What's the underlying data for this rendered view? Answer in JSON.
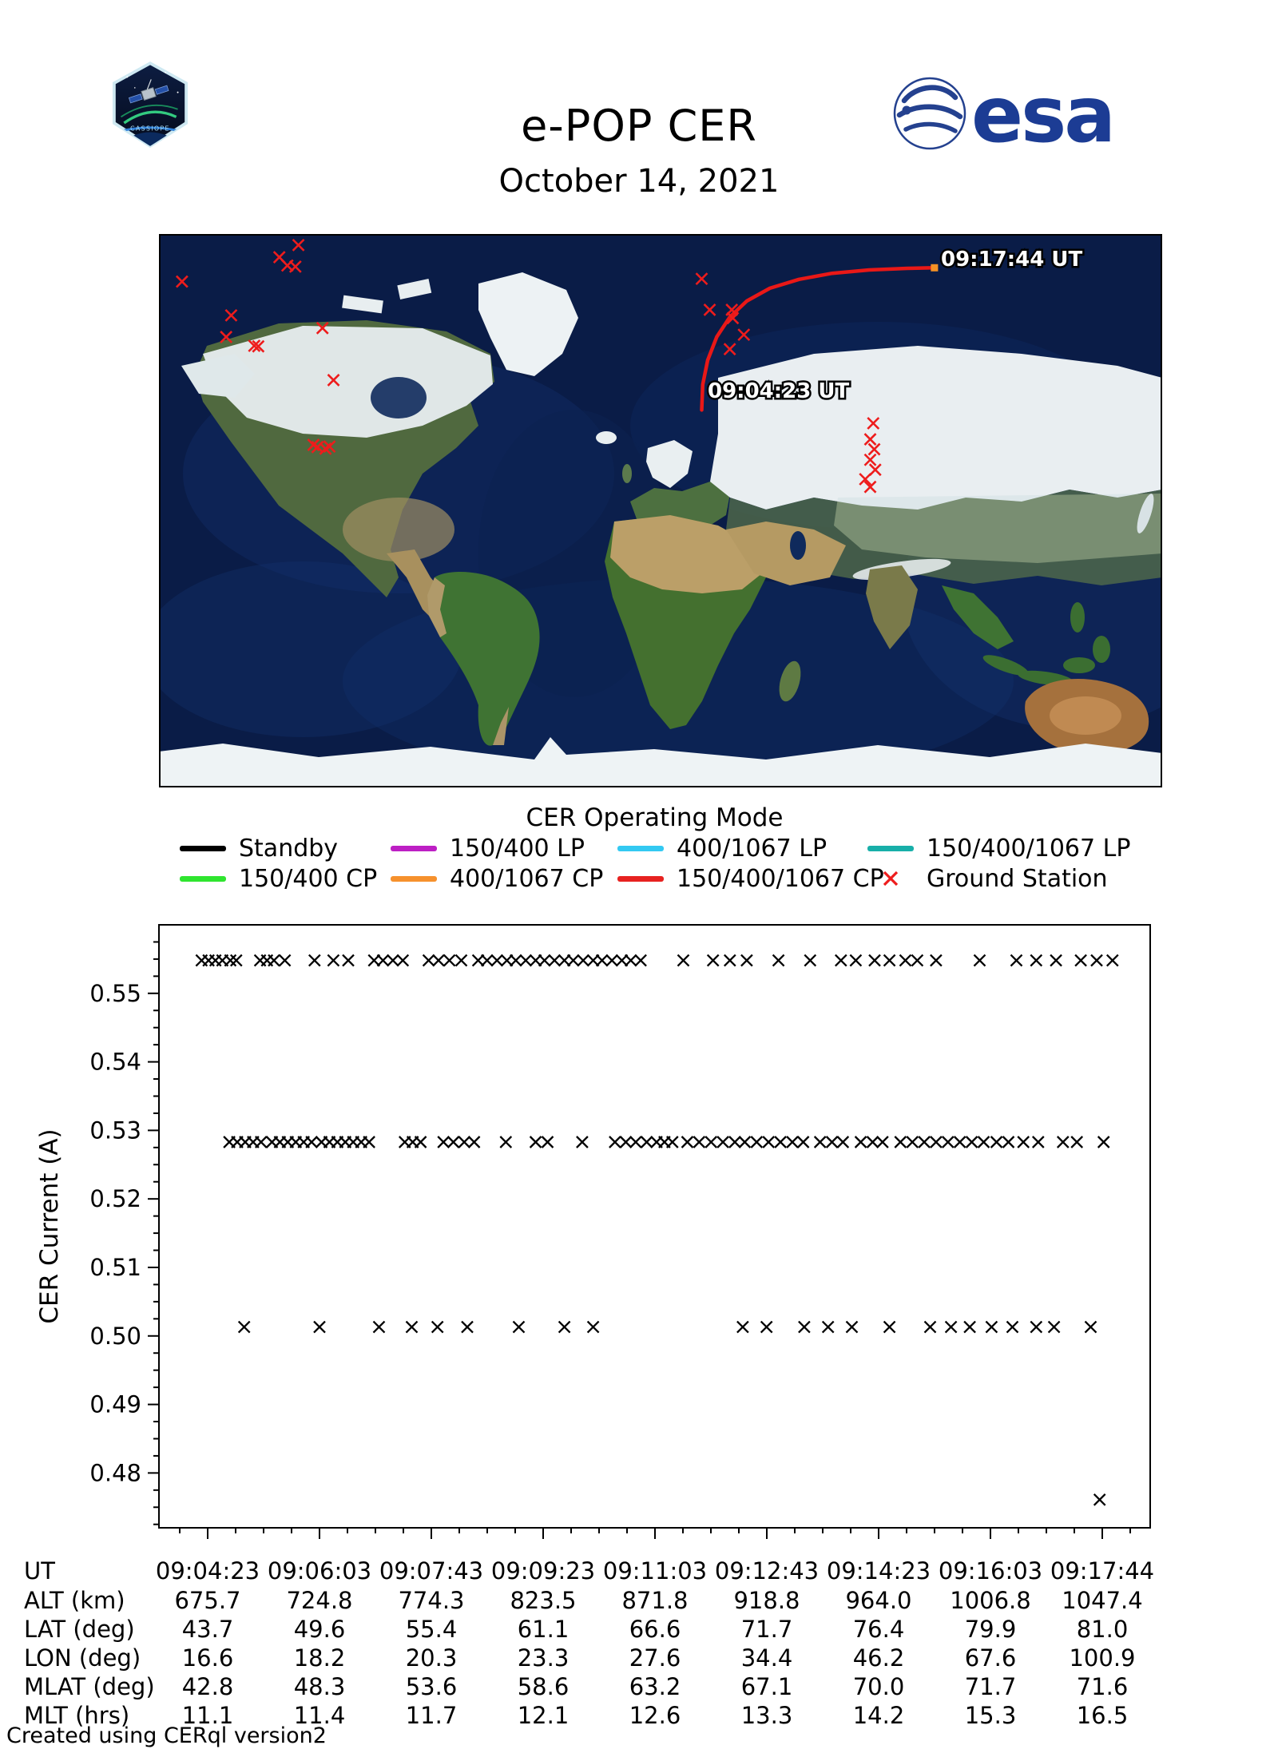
{
  "header": {
    "title": "e-POP CER",
    "date": "October 14, 2021",
    "esa_text": "esa",
    "patch_text": "CASSIOPE"
  },
  "map": {
    "start_label": "09:04:23 UT",
    "end_label": "09:17:44 UT",
    "ground_stations": [
      [
        0.139,
        0.02
      ],
      [
        0.12,
        0.042
      ],
      [
        0.128,
        0.057
      ],
      [
        0.136,
        0.059
      ],
      [
        0.023,
        0.086
      ],
      [
        0.072,
        0.147
      ],
      [
        0.067,
        0.186
      ],
      [
        0.095,
        0.202
      ],
      [
        0.099,
        0.203
      ],
      [
        0.163,
        0.17
      ],
      [
        0.174,
        0.264
      ],
      [
        0.154,
        0.381
      ],
      [
        0.158,
        0.385
      ],
      [
        0.166,
        0.388
      ],
      [
        0.17,
        0.384
      ],
      [
        0.541,
        0.081
      ],
      [
        0.549,
        0.137
      ],
      [
        0.571,
        0.137
      ],
      [
        0.572,
        0.152
      ],
      [
        0.583,
        0.182
      ],
      [
        0.569,
        0.208
      ],
      [
        0.712,
        0.342
      ],
      [
        0.709,
        0.371
      ],
      [
        0.713,
        0.389
      ],
      [
        0.709,
        0.408
      ],
      [
        0.714,
        0.426
      ],
      [
        0.704,
        0.443
      ],
      [
        0.709,
        0.457
      ]
    ],
    "trajectory": [
      [
        0.541,
        0.318
      ],
      [
        0.542,
        0.272
      ],
      [
        0.547,
        0.228
      ],
      [
        0.556,
        0.186
      ],
      [
        0.569,
        0.15
      ],
      [
        0.586,
        0.121
      ],
      [
        0.609,
        0.098
      ],
      [
        0.638,
        0.082
      ],
      [
        0.671,
        0.071
      ],
      [
        0.708,
        0.065
      ],
      [
        0.746,
        0.062
      ],
      [
        0.773,
        0.061
      ]
    ]
  },
  "legend": {
    "title": "CER Operating Mode",
    "items": [
      {
        "label": "Standby",
        "color": "#000000",
        "marker": "line"
      },
      {
        "label": "150/400 LP",
        "color": "#bd1fc4",
        "marker": "line"
      },
      {
        "label": "400/1067 LP",
        "color": "#33c9f2",
        "marker": "line"
      },
      {
        "label": "150/400/1067 LP",
        "color": "#18afa9",
        "marker": "line"
      },
      {
        "label": "150/400 CP",
        "color": "#2fe52f",
        "marker": "line"
      },
      {
        "label": "400/1067 CP",
        "color": "#f6912d",
        "marker": "line"
      },
      {
        "label": "150/400/1067 CP",
        "color": "#e72220",
        "marker": "line"
      },
      {
        "label": "Ground Station",
        "color": "#ee1c1c",
        "marker": "x"
      }
    ]
  },
  "colors": {
    "trajectory": "#e91817",
    "trajectory_endpoint": "#f59226",
    "ground_station": "#ee1c1c",
    "esa_blue": "#1c3c94",
    "marker_black": "#000000"
  },
  "chart_data": {
    "type": "scatter",
    "marker": "x",
    "ylabel": "CER Current (A)",
    "ylim": [
      0.472,
      0.56
    ],
    "yticks": [
      0.48,
      0.49,
      0.5,
      0.51,
      0.52,
      0.53,
      0.54,
      0.55
    ],
    "xticks": [
      "09:04:23",
      "09:06:03",
      "09:07:43",
      "09:09:23",
      "09:11:03",
      "09:12:43",
      "09:14:23",
      "09:16:03",
      "09:17:44"
    ],
    "grid": false,
    "series": [
      {
        "name": "current-band-high",
        "value": 0.5548,
        "t_frac": [
          0.043,
          0.05,
          0.057,
          0.064,
          0.072,
          0.078,
          0.102,
          0.109,
          0.116,
          0.127,
          0.157,
          0.176,
          0.191,
          0.217,
          0.226,
          0.236,
          0.246,
          0.272,
          0.282,
          0.293,
          0.305,
          0.322,
          0.331,
          0.341,
          0.351,
          0.36,
          0.37,
          0.38,
          0.389,
          0.399,
          0.409,
          0.418,
          0.428,
          0.438,
          0.447,
          0.457,
          0.467,
          0.476,
          0.486,
          0.529,
          0.559,
          0.576,
          0.593,
          0.625,
          0.657,
          0.688,
          0.703,
          0.722,
          0.737,
          0.753,
          0.765,
          0.784,
          0.828,
          0.865,
          0.885,
          0.905,
          0.93,
          0.946,
          0.962
        ]
      },
      {
        "name": "current-band-mid",
        "value": 0.5283,
        "t_frac": [
          0.071,
          0.079,
          0.087,
          0.095,
          0.103,
          0.114,
          0.122,
          0.13,
          0.138,
          0.146,
          0.154,
          0.164,
          0.172,
          0.18,
          0.188,
          0.196,
          0.204,
          0.212,
          0.248,
          0.256,
          0.264,
          0.287,
          0.297,
          0.308,
          0.318,
          0.35,
          0.38,
          0.392,
          0.427,
          0.46,
          0.471,
          0.481,
          0.492,
          0.502,
          0.51,
          0.518,
          0.533,
          0.545,
          0.557,
          0.569,
          0.581,
          0.591,
          0.603,
          0.615,
          0.627,
          0.639,
          0.65,
          0.667,
          0.679,
          0.69,
          0.708,
          0.72,
          0.73,
          0.748,
          0.76,
          0.772,
          0.784,
          0.796,
          0.808,
          0.82,
          0.832,
          0.845,
          0.857,
          0.872,
          0.887,
          0.912,
          0.926,
          0.953
        ]
      },
      {
        "name": "current-band-low",
        "value": 0.5013,
        "t_frac": [
          0.086,
          0.162,
          0.222,
          0.255,
          0.281,
          0.311,
          0.363,
          0.409,
          0.438,
          0.589,
          0.613,
          0.651,
          0.675,
          0.699,
          0.737,
          0.778,
          0.799,
          0.818,
          0.84,
          0.861,
          0.885,
          0.903,
          0.94
        ]
      },
      {
        "name": "current-outlier",
        "value": 0.4761,
        "t_frac": [
          0.949
        ]
      }
    ]
  },
  "table": {
    "row_labels": [
      "UT",
      "ALT (km)",
      "LAT (deg)",
      "LON (deg)",
      "MLAT (deg)",
      "MLT (hrs)"
    ],
    "columns": [
      [
        "09:04:23",
        "675.7",
        "43.7",
        "16.6",
        "42.8",
        "11.1"
      ],
      [
        "09:06:03",
        "724.8",
        "49.6",
        "18.2",
        "48.3",
        "11.4"
      ],
      [
        "09:07:43",
        "774.3",
        "55.4",
        "20.3",
        "53.6",
        "11.7"
      ],
      [
        "09:09:23",
        "823.5",
        "61.1",
        "23.3",
        "58.6",
        "12.1"
      ],
      [
        "09:11:03",
        "871.8",
        "66.6",
        "27.6",
        "63.2",
        "12.6"
      ],
      [
        "09:12:43",
        "918.8",
        "71.7",
        "34.4",
        "67.1",
        "13.3"
      ],
      [
        "09:14:23",
        "964.0",
        "76.4",
        "46.2",
        "70.0",
        "14.2"
      ],
      [
        "09:16:03",
        "1006.8",
        "79.9",
        "67.6",
        "71.7",
        "15.3"
      ],
      [
        "09:17:44",
        "1047.4",
        "81.0",
        "100.9",
        "71.6",
        "16.5"
      ]
    ]
  },
  "footer": {
    "credit": "Created using CERql version2"
  }
}
